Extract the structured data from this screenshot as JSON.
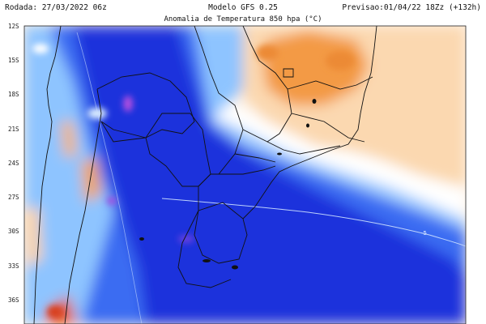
{
  "header": {
    "left": "Rodada: 27/03/2022 06z",
    "center": "Modelo GFS 0.25",
    "right": "Previsao:01/04/22 18Zz (+132h)",
    "title": "Anomalia de Temperatura 850 hpa (°C)"
  },
  "axis": {
    "lat_labels": [
      "12S",
      "15S",
      "18S",
      "21S",
      "24S",
      "27S",
      "30S",
      "33S",
      "36S"
    ]
  },
  "contour_label": "-5",
  "colors": {
    "cold_deep": "#1d2fd8",
    "cold_mid": "#2f66f0",
    "cold_light": "#8ec4ff",
    "neutral": "#ffffff",
    "warm_light": "#fbd3a6",
    "warm_mid": "#f29a45",
    "warm_deep": "#e2551a",
    "anomaly_purple": "#b24fe0",
    "border_line": "#111111"
  }
}
